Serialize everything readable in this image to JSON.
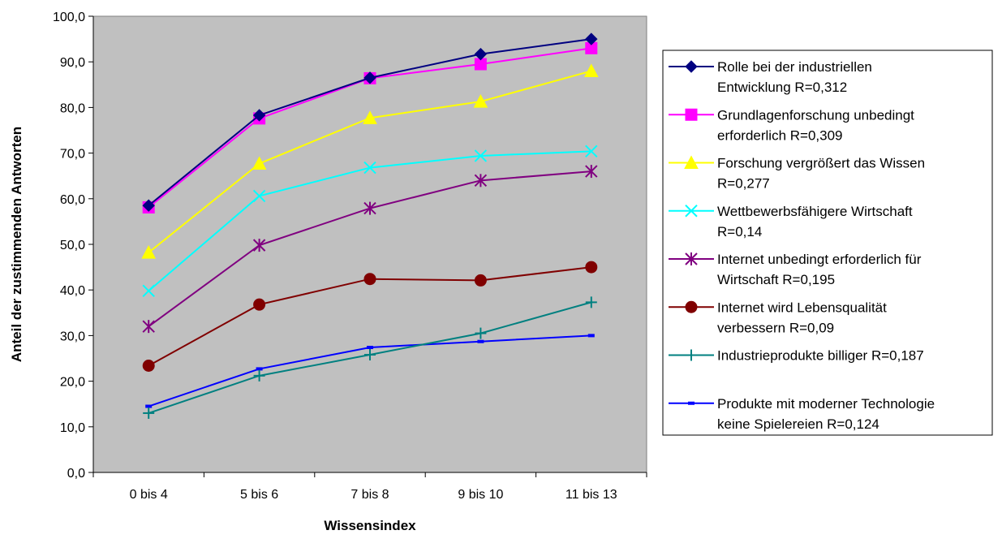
{
  "chart_data": {
    "type": "line",
    "title": "",
    "xlabel": "Wissensindex",
    "ylabel": "Anteil der zustimmenden Antworten",
    "categories": [
      "0 bis 4",
      "5 bis 6",
      "7 bis 8",
      "9 bis 10",
      "11 bis 13"
    ],
    "ylim": [
      0,
      100
    ],
    "yticks": [
      "0,0",
      "10,0",
      "20,0",
      "30,0",
      "40,0",
      "50,0",
      "60,0",
      "70,0",
      "80,0",
      "90,0",
      "100,0"
    ],
    "grid": false,
    "plot_background": "#c0c0c0",
    "legend_position": "right",
    "series": [
      {
        "name": "Rolle bei der industriellen Entwicklung R=0,312",
        "lines": [
          "Rolle bei der industriellen",
          "Entwicklung R=0,312"
        ],
        "color": "#000080",
        "marker": "diamond",
        "values": [
          58.5,
          78.3,
          86.5,
          91.7,
          95.0
        ]
      },
      {
        "name": "Grundlagenforschung unbedingt erforderlich R=0,309",
        "lines": [
          "Grundlagenforschung unbedingt",
          "erforderlich R=0,309"
        ],
        "color": "#ff00ff",
        "marker": "square",
        "values": [
          58.1,
          77.6,
          86.4,
          89.5,
          93.0
        ]
      },
      {
        "name": "Forschung vergrößert das Wissen R=0,277",
        "lines": [
          "Forschung vergrößert das Wissen",
          "R=0,277"
        ],
        "color": "#ffff00",
        "marker": "triangle",
        "values": [
          48.2,
          67.7,
          77.7,
          81.3,
          88.0
        ]
      },
      {
        "name": "Wettbewerbsfähigere Wirtschaft R=0,14",
        "lines": [
          "Wettbewerbsfähigere Wirtschaft",
          "R=0,14"
        ],
        "color": "#00ffff",
        "marker": "x",
        "values": [
          39.8,
          60.6,
          66.8,
          69.4,
          70.4
        ]
      },
      {
        "name": "Internet unbedingt erforderlich für Wirtschaft R=0,195",
        "lines": [
          "Internet unbedingt erforderlich für",
          "Wirtschaft R=0,195"
        ],
        "color": "#800080",
        "marker": "star",
        "values": [
          32.0,
          49.8,
          57.9,
          64.0,
          66.0
        ]
      },
      {
        "name": "Internet wird Lebensqualität verbessern R=0,09",
        "lines": [
          "Internet wird Lebensqualität",
          "verbessern R=0,09"
        ],
        "color": "#800000",
        "marker": "circle",
        "values": [
          23.4,
          36.8,
          42.4,
          42.1,
          45.0
        ]
      },
      {
        "name": "Industrieprodukte billiger R=0,187",
        "lines": [
          "Industrieprodukte billiger R=0,187"
        ],
        "color": "#008080",
        "marker": "plus",
        "values": [
          13.0,
          21.2,
          25.8,
          30.5,
          37.3
        ]
      },
      {
        "name": "Produkte mit moderner Technologie keine Spielereien R=0,124",
        "lines": [
          "Produkte mit moderner Technologie",
          "keine Spielereien R=0,124"
        ],
        "color": "#0000ff",
        "marker": "dash",
        "values": [
          14.5,
          22.7,
          27.4,
          28.7,
          30.0
        ]
      }
    ]
  }
}
